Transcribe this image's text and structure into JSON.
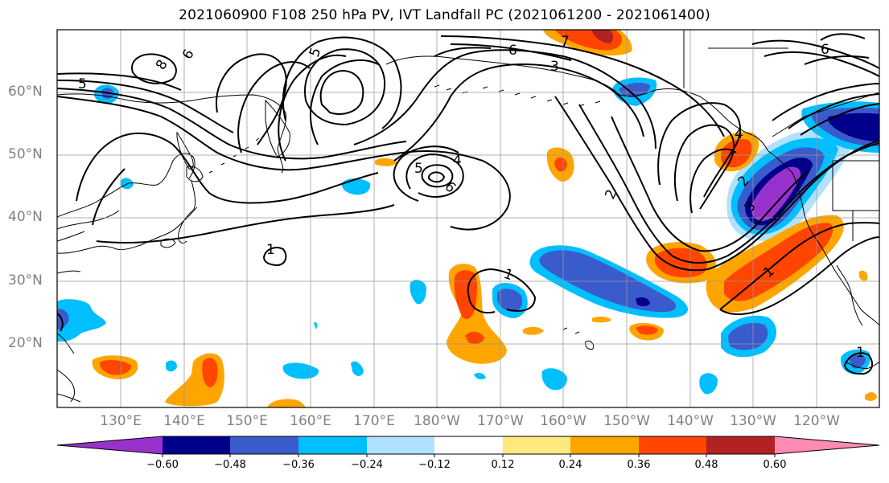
{
  "title": "2021060900 F108 250 hPa PV, IVT Landfall PC (2021061200 - 2021061400)",
  "lat_labels": [
    "60°N",
    "50°N",
    "40°N",
    "30°N",
    "20°N"
  ],
  "lon_labels": [
    "130°E",
    "140°E",
    "150°E",
    "160°E",
    "170°E",
    "180°W",
    "170°W",
    "160°W",
    "150°W",
    "140°W",
    "130°W",
    "120°W"
  ],
  "contour_labels": [
    "5",
    "6",
    "8",
    "5",
    "6",
    "7",
    "6",
    "3",
    "4",
    "5",
    "6",
    "2",
    "4",
    "1",
    "1",
    "1",
    "1",
    "2",
    "3"
  ],
  "colorbar": {
    "ticks": [
      "−0.60",
      "−0.48",
      "−0.36",
      "−0.24",
      "−0.12",
      "0.12",
      "0.24",
      "0.36",
      "0.48",
      "0.60"
    ],
    "colors": [
      "#9932cc",
      "#00008b",
      "#3a5bcc",
      "#00bfff",
      "#b0e2ff",
      "#ffffff",
      "#ffe97f",
      "#ffa500",
      "#ff4500",
      "#b22222",
      "#ff8ab4"
    ]
  },
  "colors": {
    "axis_label": "#808080",
    "gridline": "#999999",
    "contour": "#000000"
  }
}
